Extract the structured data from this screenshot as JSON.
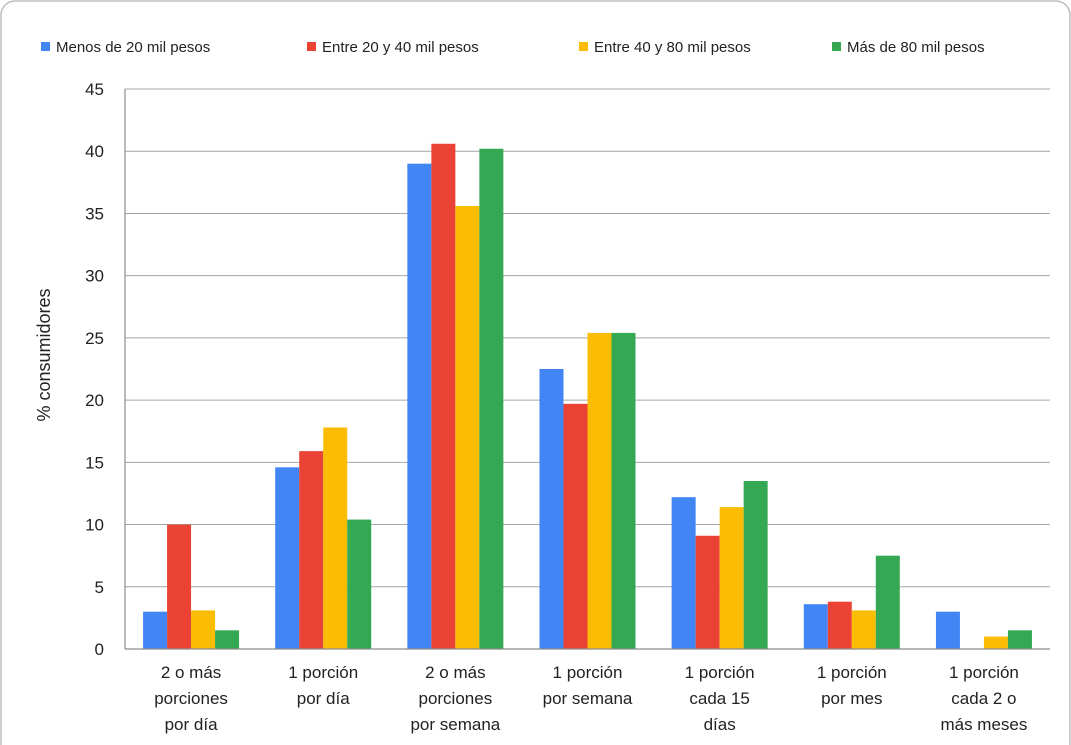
{
  "chart_data": {
    "type": "bar",
    "title": "",
    "xlabel": "",
    "ylabel": "% consumidores",
    "ylim": [
      0,
      45
    ],
    "yticks": [
      0,
      5,
      10,
      15,
      20,
      25,
      30,
      35,
      40,
      45
    ],
    "grid": true,
    "legend_position": "top",
    "categories": [
      [
        "2 o más",
        "porciones",
        "por día"
      ],
      [
        "1 porción",
        "por día"
      ],
      [
        "2 o más",
        "porciones",
        "por semana"
      ],
      [
        "1 porción",
        "por semana"
      ],
      [
        "1 porción",
        "cada 15",
        "días"
      ],
      [
        "1 porción",
        "por mes"
      ],
      [
        "1 porción",
        "cada 2 o",
        "más meses"
      ]
    ],
    "series": [
      {
        "name": "Menos de 20 mil pesos",
        "color": "#4285F4",
        "values": [
          3.0,
          14.6,
          39.0,
          22.5,
          12.2,
          3.6,
          3.0
        ]
      },
      {
        "name": "Entre 20 y 40 mil pesos",
        "color": "#EA4335",
        "values": [
          10.0,
          15.9,
          40.6,
          19.7,
          9.1,
          3.8,
          0
        ]
      },
      {
        "name": "Entre 40 y 80 mil pesos",
        "color": "#FBBC04",
        "values": [
          3.1,
          17.8,
          35.6,
          25.4,
          11.4,
          3.1,
          1.0
        ]
      },
      {
        "name": "Más de 80 mil pesos",
        "color": "#34A853",
        "values": [
          1.5,
          10.4,
          40.2,
          25.4,
          13.5,
          7.5,
          1.5
        ]
      }
    ]
  }
}
